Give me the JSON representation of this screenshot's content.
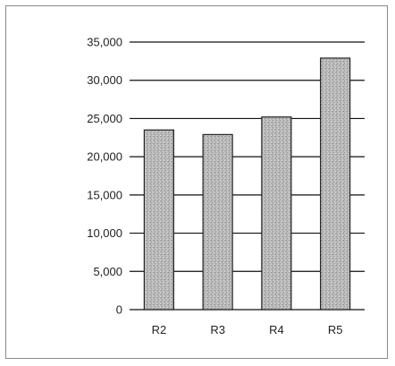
{
  "chart_data": {
    "type": "bar",
    "categories": [
      "R2",
      "R3",
      "R4",
      "R5"
    ],
    "values": [
      23500,
      22900,
      25200,
      32900
    ],
    "title": "",
    "xlabel": "",
    "ylabel": "",
    "ylim": [
      0,
      35000
    ],
    "y_ticks": [
      {
        "value": 0,
        "label": "0"
      },
      {
        "value": 5000,
        "label": "5,000"
      },
      {
        "value": 10000,
        "label": "10,000"
      },
      {
        "value": 15000,
        "label": "15,000"
      },
      {
        "value": 20000,
        "label": "20,000"
      },
      {
        "value": 25000,
        "label": "25,000"
      },
      {
        "value": 30000,
        "label": "30,000"
      },
      {
        "value": 35000,
        "label": "35,000"
      }
    ],
    "grid": true,
    "legend": "none",
    "bar_color": "#b5b5b5",
    "bar_edge_color": "#222222"
  }
}
